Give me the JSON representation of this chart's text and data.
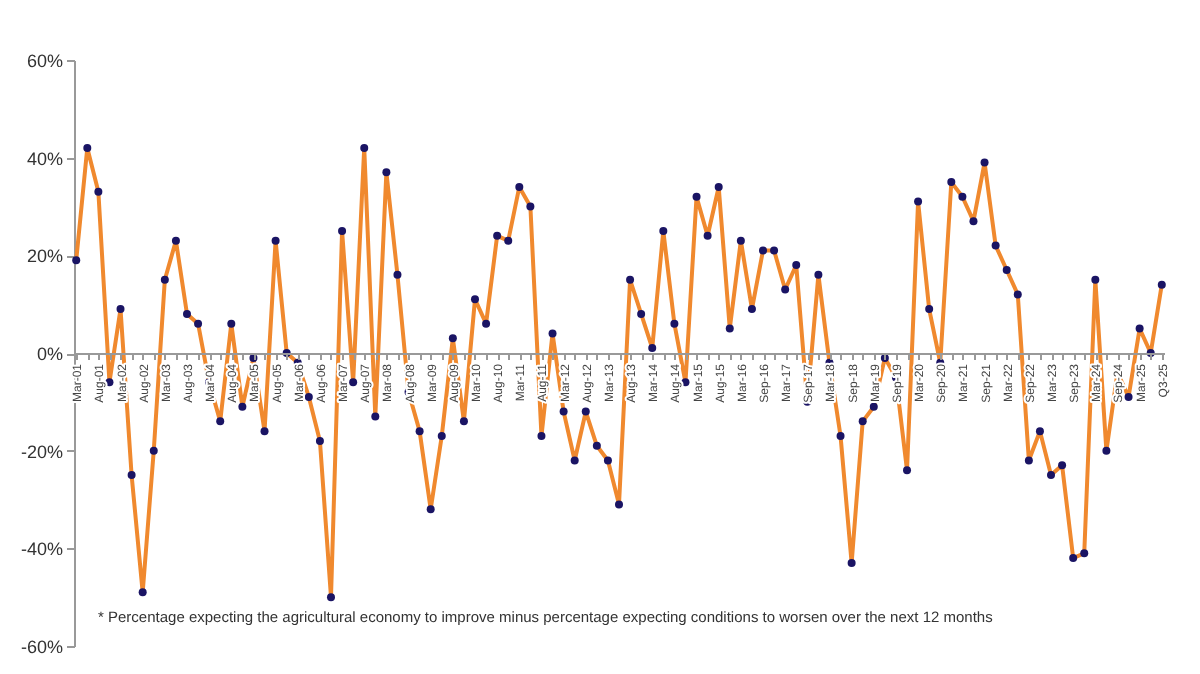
{
  "chart_data": {
    "type": "line",
    "categories": [
      "Mar-01",
      null,
      "Aug-01",
      null,
      "Mar-02",
      null,
      "Aug-02",
      null,
      "Mar-03",
      null,
      "Aug-03",
      null,
      "Mar-04",
      null,
      "Aug-04",
      null,
      "Mar-05",
      null,
      "Aug-05",
      null,
      "Mar-06",
      null,
      "Aug-06",
      null,
      "Mar-07",
      null,
      "Aug-07",
      null,
      "Mar-08",
      null,
      "Aug-08",
      null,
      "Mar-09",
      null,
      "Aug-09",
      null,
      "Mar-10",
      null,
      "Aug-10",
      null,
      "Mar-11",
      null,
      "Aug-11",
      null,
      "Mar-12",
      null,
      "Aug-12",
      null,
      "Mar-13",
      null,
      "Aug-13",
      null,
      "Mar-14",
      null,
      "Aug-14",
      null,
      "Mar-15",
      null,
      "Aug-15",
      null,
      "Mar-16",
      null,
      "Sep-16",
      null,
      "Mar-17",
      null,
      "Sep-17",
      null,
      "Mar-18",
      null,
      "Sep-18",
      null,
      "Mar-19",
      null,
      "Sep-19",
      null,
      "Mar-20",
      null,
      "Sep-20",
      null,
      "Mar-21",
      null,
      "Sep-21",
      null,
      "Mar-22",
      null,
      "Sep-22",
      null,
      "Mar-23",
      null,
      "Sep-23",
      null,
      "Mar-24",
      null,
      "Sep-24",
      null,
      "Mar-25",
      null,
      "Q3-25"
    ],
    "series": [
      {
        "color": "#f0892e",
        "values": [
          19,
          42,
          33,
          -6,
          9,
          -25,
          -49,
          -20,
          15,
          23,
          8,
          6,
          -6,
          -14,
          6,
          -11,
          -1,
          -16,
          23,
          0,
          -2,
          -9,
          -18,
          -50,
          25,
          -6,
          42,
          -13,
          37,
          16,
          -8,
          -16,
          -32,
          -17,
          3,
          -14,
          11,
          6,
          24,
          23,
          34,
          30,
          -17,
          4,
          -12,
          -22,
          -12,
          -19,
          -22,
          -31,
          15,
          8,
          1,
          25,
          6,
          -6,
          32,
          24,
          34,
          5,
          23,
          9,
          21,
          21,
          13,
          18,
          -10,
          16,
          -2,
          -17,
          -43,
          -14,
          -11,
          -1,
          -5,
          -24,
          31,
          9,
          -2,
          35,
          32,
          27,
          39,
          22,
          17,
          12,
          -22,
          -16,
          -25,
          -23,
          -42,
          -41,
          15,
          -20,
          -4,
          -9,
          5,
          0,
          14
        ]
      }
    ],
    "ylim": [
      -60,
      60
    ],
    "yticks": [
      {
        "value": -60,
        "label": "-60%"
      },
      {
        "value": -40,
        "label": "-40%"
      },
      {
        "value": -20,
        "label": "-20%"
      },
      {
        "value": 0,
        "label": "0%"
      },
      {
        "value": 20,
        "label": "20%"
      },
      {
        "value": 40,
        "label": "40%"
      },
      {
        "value": 60,
        "label": "60%"
      }
    ],
    "marker": "circle",
    "line_style": "solid",
    "annotations": [
      "* Percentage expecting the agricultural economy to improve minus percentage expecting conditions to worsen over the next 12 months"
    ]
  }
}
